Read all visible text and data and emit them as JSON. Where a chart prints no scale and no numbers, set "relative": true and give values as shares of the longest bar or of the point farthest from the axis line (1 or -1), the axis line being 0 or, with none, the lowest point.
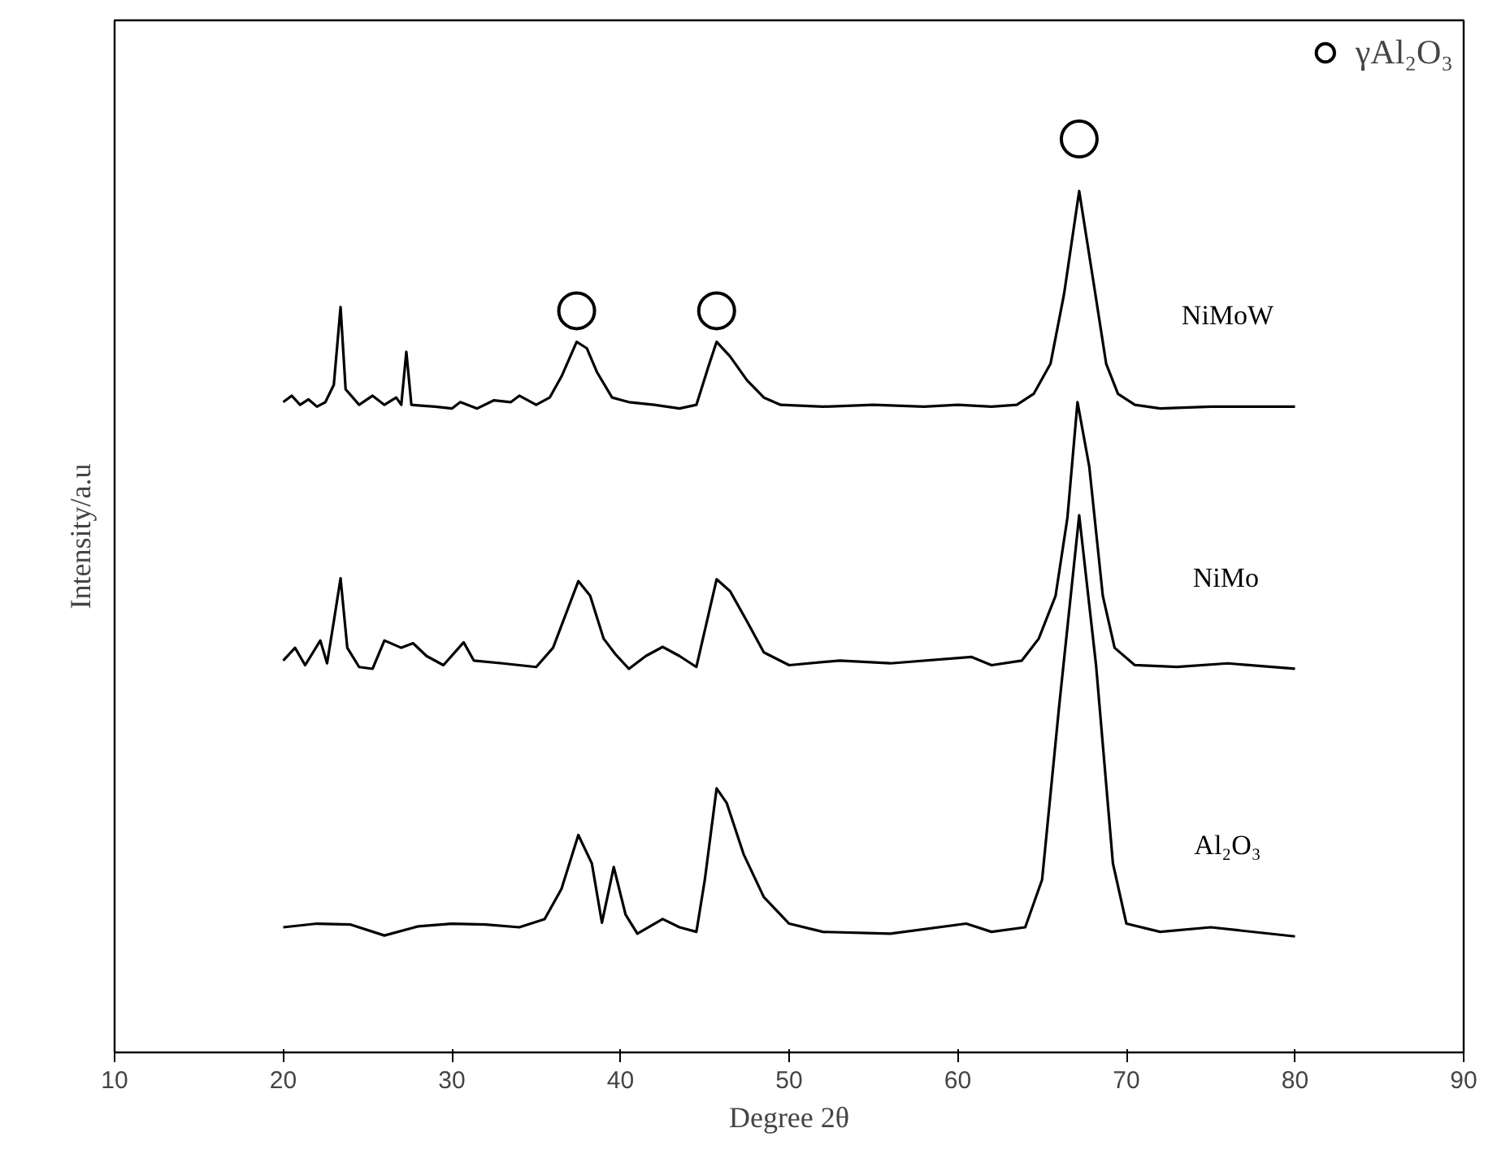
{
  "chart_data": {
    "type": "line",
    "relative": true,
    "xlabel": "Degree 2θ",
    "ylabel": "Intensity/a.u",
    "xlim": [
      10,
      90
    ],
    "xticks": [
      10,
      20,
      30,
      40,
      50,
      60,
      70,
      80,
      90
    ],
    "grid": false,
    "legend": "top right",
    "marker": "none",
    "line_style": "solid",
    "series": [
      {
        "name": "NiMoW",
        "color": "#000000",
        "x": [
          20,
          20.5,
          21,
          21.5,
          22,
          22.5,
          23,
          23.4,
          23.7,
          24.5,
          25.3,
          26,
          26.7,
          27,
          27.3,
          27.6,
          29,
          30,
          30.5,
          31.5,
          32.5,
          33.5,
          34,
          35,
          35.8,
          36.5,
          37.4,
          38,
          38.6,
          39.5,
          40.5,
          42,
          43.5,
          44.5,
          45.2,
          45.7,
          46.5,
          47.5,
          48.5,
          49.5,
          52,
          55,
          58,
          60,
          62,
          63.5,
          64.5,
          65.5,
          66.3,
          67.2,
          68,
          68.8,
          69.5,
          70.5,
          72,
          75,
          78,
          80
        ],
        "values": [
          0.712,
          0.719,
          0.709,
          0.715,
          0.707,
          0.712,
          0.731,
          0.816,
          0.726,
          0.709,
          0.719,
          0.709,
          0.717,
          0.709,
          0.767,
          0.709,
          0.707,
          0.705,
          0.712,
          0.705,
          0.714,
          0.712,
          0.719,
          0.709,
          0.717,
          0.74,
          0.778,
          0.771,
          0.745,
          0.717,
          0.712,
          0.709,
          0.705,
          0.709,
          0.75,
          0.778,
          0.762,
          0.736,
          0.717,
          0.709,
          0.707,
          0.709,
          0.707,
          0.709,
          0.707,
          0.709,
          0.721,
          0.754,
          0.83,
          0.943,
          0.849,
          0.754,
          0.721,
          0.709,
          0.705,
          0.707,
          0.707,
          0.707
        ]
      },
      {
        "name": "NiMo",
        "color": "#000000",
        "x": [
          20,
          20.7,
          21.3,
          22.2,
          22.6,
          23,
          23.4,
          23.8,
          24.5,
          25.3,
          26,
          27,
          27.7,
          28.5,
          29.5,
          30.7,
          31.3,
          33,
          35,
          36,
          37.5,
          38.2,
          39,
          39.7,
          40.5,
          41.5,
          42.5,
          43.5,
          44.5,
          45.7,
          46.5,
          47.5,
          48.5,
          50,
          53,
          56,
          60.8,
          62,
          63.8,
          64.8,
          65.8,
          66.5,
          67.1,
          67.8,
          68.6,
          69.3,
          70.5,
          73,
          76,
          80
        ],
        "values": [
          0.429,
          0.443,
          0.424,
          0.451,
          0.426,
          0.472,
          0.519,
          0.443,
          0.422,
          0.42,
          0.451,
          0.443,
          0.448,
          0.434,
          0.424,
          0.449,
          0.429,
          0.426,
          0.422,
          0.443,
          0.516,
          0.5,
          0.453,
          0.436,
          0.42,
          0.434,
          0.444,
          0.434,
          0.422,
          0.518,
          0.505,
          0.472,
          0.438,
          0.424,
          0.429,
          0.426,
          0.433,
          0.424,
          0.429,
          0.453,
          0.5,
          0.585,
          0.712,
          0.641,
          0.5,
          0.443,
          0.424,
          0.422,
          0.426,
          0.42
        ]
      },
      {
        "name": "Al₂O₃",
        "color": "#000000",
        "x": [
          20,
          22,
          24,
          26,
          28,
          30,
          32,
          34,
          35.5,
          36.5,
          37.5,
          38.3,
          38.9,
          39.6,
          40.3,
          41,
          42.5,
          43.5,
          44.5,
          45,
          45.7,
          46.3,
          47.3,
          48.5,
          50,
          52,
          56,
          60.5,
          62,
          64,
          65,
          66,
          67.2,
          68.2,
          69.2,
          70,
          72,
          75,
          80
        ],
        "values": [
          0.137,
          0.141,
          0.14,
          0.128,
          0.138,
          0.141,
          0.14,
          0.137,
          0.146,
          0.179,
          0.238,
          0.207,
          0.142,
          0.203,
          0.151,
          0.13,
          0.146,
          0.137,
          0.132,
          0.189,
          0.289,
          0.273,
          0.217,
          0.17,
          0.141,
          0.132,
          0.13,
          0.141,
          0.132,
          0.137,
          0.189,
          0.377,
          0.588,
          0.424,
          0.207,
          0.141,
          0.132,
          0.137,
          0.127
        ]
      },
      {
        "name": "γAl₂O₃",
        "type": "scatter",
        "marker": "circle",
        "color": "#000000",
        "x": [
          37.4,
          45.7,
          67.2
        ],
        "values": [
          0.812,
          0.812,
          1.0
        ]
      }
    ]
  }
}
